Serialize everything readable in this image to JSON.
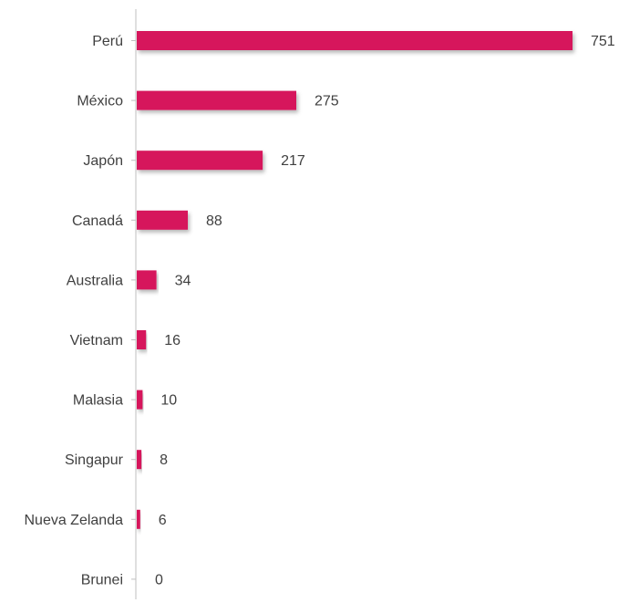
{
  "chart_data": {
    "type": "bar",
    "orientation": "horizontal",
    "categories": [
      "Perú",
      "México",
      "Japón",
      "Canadá",
      "Australia",
      "Vietnam",
      "Malasia",
      "Singapur",
      "Nueva Zelanda",
      "Brunei"
    ],
    "values": [
      751,
      275,
      217,
      88,
      34,
      16,
      10,
      8,
      6,
      0
    ],
    "value_labels": [
      "751",
      "275",
      "217",
      "88",
      "34",
      "16",
      "10",
      "8",
      "6",
      "0"
    ],
    "xlim": [
      0,
      751
    ],
    "grid": false,
    "legend": "none",
    "bar_color": "#d6175c",
    "axis_color": "#bfbfbf",
    "text_color": "#404040"
  }
}
